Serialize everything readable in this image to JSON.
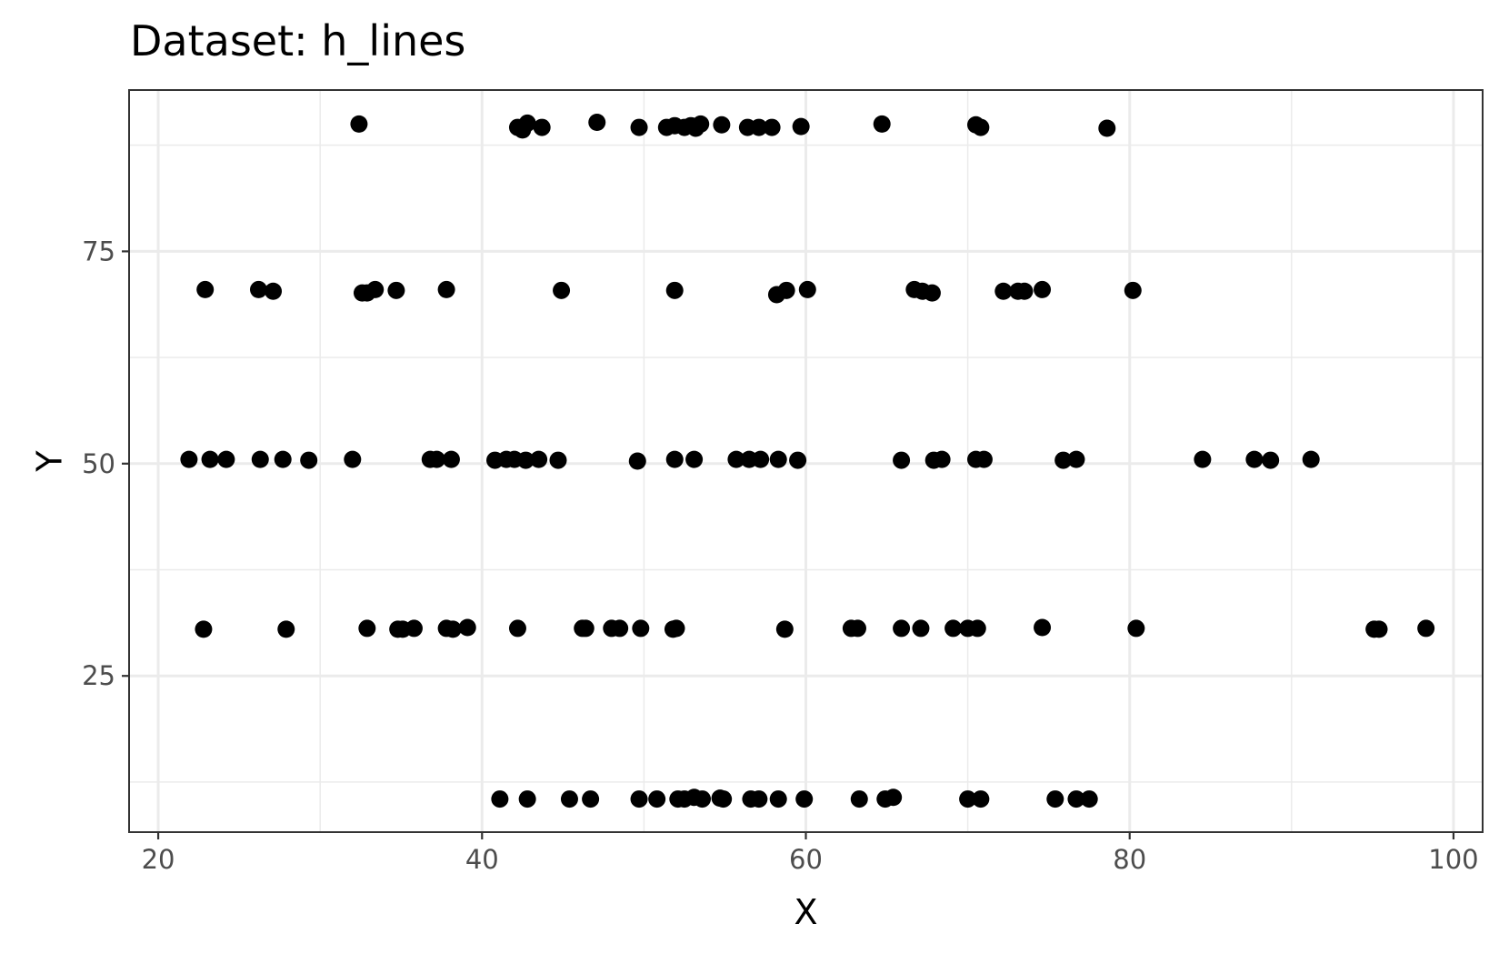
{
  "chart_data": {
    "type": "scatter",
    "title": "Dataset: h_lines",
    "xlabel": "X",
    "ylabel": "Y",
    "xlim": [
      18.2,
      101.8
    ],
    "ylim": [
      6.6,
      94.0
    ],
    "x_ticks": [
      20,
      40,
      60,
      80,
      100
    ],
    "y_ticks": [
      25,
      50,
      75
    ],
    "x_tick_labels": [
      "20",
      "40",
      "60",
      "80",
      "100"
    ],
    "y_tick_labels": [
      "25",
      "50",
      "75"
    ],
    "grid": true,
    "legend": "none",
    "point_color": "#000000",
    "points": [
      {
        "x": 32.4,
        "y": 90.0
      },
      {
        "x": 42.2,
        "y": 89.6
      },
      {
        "x": 42.5,
        "y": 89.3
      },
      {
        "x": 42.8,
        "y": 90.1
      },
      {
        "x": 43.7,
        "y": 89.6
      },
      {
        "x": 47.1,
        "y": 90.2
      },
      {
        "x": 49.7,
        "y": 89.6
      },
      {
        "x": 51.4,
        "y": 89.6
      },
      {
        "x": 51.9,
        "y": 89.8
      },
      {
        "x": 52.5,
        "y": 89.6
      },
      {
        "x": 52.9,
        "y": 89.8
      },
      {
        "x": 53.2,
        "y": 89.5
      },
      {
        "x": 53.5,
        "y": 90.0
      },
      {
        "x": 54.8,
        "y": 89.9
      },
      {
        "x": 56.4,
        "y": 89.6
      },
      {
        "x": 57.1,
        "y": 89.6
      },
      {
        "x": 57.9,
        "y": 89.6
      },
      {
        "x": 59.7,
        "y": 89.7
      },
      {
        "x": 64.7,
        "y": 90.0
      },
      {
        "x": 70.5,
        "y": 89.9
      },
      {
        "x": 70.8,
        "y": 89.6
      },
      {
        "x": 78.6,
        "y": 89.5
      },
      {
        "x": 22.9,
        "y": 70.5
      },
      {
        "x": 26.2,
        "y": 70.5
      },
      {
        "x": 27.1,
        "y": 70.3
      },
      {
        "x": 32.6,
        "y": 70.1
      },
      {
        "x": 32.9,
        "y": 70.1
      },
      {
        "x": 33.4,
        "y": 70.5
      },
      {
        "x": 34.7,
        "y": 70.4
      },
      {
        "x": 37.8,
        "y": 70.5
      },
      {
        "x": 44.9,
        "y": 70.4
      },
      {
        "x": 51.9,
        "y": 70.4
      },
      {
        "x": 58.2,
        "y": 69.9
      },
      {
        "x": 58.8,
        "y": 70.4
      },
      {
        "x": 60.1,
        "y": 70.5
      },
      {
        "x": 66.7,
        "y": 70.5
      },
      {
        "x": 67.2,
        "y": 70.3
      },
      {
        "x": 67.8,
        "y": 70.1
      },
      {
        "x": 72.2,
        "y": 70.3
      },
      {
        "x": 73.1,
        "y": 70.3
      },
      {
        "x": 73.5,
        "y": 70.3
      },
      {
        "x": 74.6,
        "y": 70.5
      },
      {
        "x": 80.2,
        "y": 70.4
      },
      {
        "x": 21.9,
        "y": 50.5
      },
      {
        "x": 23.2,
        "y": 50.5
      },
      {
        "x": 24.2,
        "y": 50.5
      },
      {
        "x": 26.3,
        "y": 50.5
      },
      {
        "x": 27.7,
        "y": 50.5
      },
      {
        "x": 29.3,
        "y": 50.4
      },
      {
        "x": 32.0,
        "y": 50.5
      },
      {
        "x": 36.8,
        "y": 50.5
      },
      {
        "x": 37.2,
        "y": 50.5
      },
      {
        "x": 38.1,
        "y": 50.5
      },
      {
        "x": 40.8,
        "y": 50.4
      },
      {
        "x": 41.5,
        "y": 50.5
      },
      {
        "x": 42.0,
        "y": 50.5
      },
      {
        "x": 42.7,
        "y": 50.4
      },
      {
        "x": 43.5,
        "y": 50.5
      },
      {
        "x": 44.7,
        "y": 50.4
      },
      {
        "x": 49.6,
        "y": 50.3
      },
      {
        "x": 51.9,
        "y": 50.5
      },
      {
        "x": 53.1,
        "y": 50.5
      },
      {
        "x": 55.7,
        "y": 50.5
      },
      {
        "x": 56.5,
        "y": 50.5
      },
      {
        "x": 57.2,
        "y": 50.5
      },
      {
        "x": 58.3,
        "y": 50.5
      },
      {
        "x": 59.5,
        "y": 50.4
      },
      {
        "x": 65.9,
        "y": 50.4
      },
      {
        "x": 67.9,
        "y": 50.4
      },
      {
        "x": 68.4,
        "y": 50.5
      },
      {
        "x": 70.5,
        "y": 50.5
      },
      {
        "x": 71.0,
        "y": 50.5
      },
      {
        "x": 75.9,
        "y": 50.4
      },
      {
        "x": 76.7,
        "y": 50.5
      },
      {
        "x": 84.5,
        "y": 50.5
      },
      {
        "x": 87.7,
        "y": 50.5
      },
      {
        "x": 88.7,
        "y": 50.4
      },
      {
        "x": 91.2,
        "y": 50.5
      },
      {
        "x": 22.8,
        "y": 30.5
      },
      {
        "x": 27.9,
        "y": 30.5
      },
      {
        "x": 32.9,
        "y": 30.6
      },
      {
        "x": 34.8,
        "y": 30.5
      },
      {
        "x": 35.1,
        "y": 30.5
      },
      {
        "x": 35.8,
        "y": 30.6
      },
      {
        "x": 37.8,
        "y": 30.6
      },
      {
        "x": 38.2,
        "y": 30.5
      },
      {
        "x": 39.1,
        "y": 30.7
      },
      {
        "x": 42.2,
        "y": 30.6
      },
      {
        "x": 46.2,
        "y": 30.6
      },
      {
        "x": 46.4,
        "y": 30.6
      },
      {
        "x": 48.0,
        "y": 30.6
      },
      {
        "x": 48.5,
        "y": 30.6
      },
      {
        "x": 49.8,
        "y": 30.6
      },
      {
        "x": 51.8,
        "y": 30.5
      },
      {
        "x": 52.0,
        "y": 30.6
      },
      {
        "x": 58.7,
        "y": 30.5
      },
      {
        "x": 62.8,
        "y": 30.6
      },
      {
        "x": 63.2,
        "y": 30.6
      },
      {
        "x": 65.9,
        "y": 30.6
      },
      {
        "x": 67.1,
        "y": 30.6
      },
      {
        "x": 69.1,
        "y": 30.6
      },
      {
        "x": 70.0,
        "y": 30.6
      },
      {
        "x": 70.6,
        "y": 30.6
      },
      {
        "x": 74.6,
        "y": 30.7
      },
      {
        "x": 80.4,
        "y": 30.6
      },
      {
        "x": 95.1,
        "y": 30.5
      },
      {
        "x": 95.4,
        "y": 30.5
      },
      {
        "x": 98.3,
        "y": 30.6
      },
      {
        "x": 41.1,
        "y": 10.5
      },
      {
        "x": 42.8,
        "y": 10.5
      },
      {
        "x": 45.4,
        "y": 10.5
      },
      {
        "x": 46.7,
        "y": 10.5
      },
      {
        "x": 49.7,
        "y": 10.5
      },
      {
        "x": 50.8,
        "y": 10.5
      },
      {
        "x": 52.1,
        "y": 10.5
      },
      {
        "x": 52.5,
        "y": 10.5
      },
      {
        "x": 53.1,
        "y": 10.7
      },
      {
        "x": 53.6,
        "y": 10.5
      },
      {
        "x": 54.7,
        "y": 10.6
      },
      {
        "x": 54.9,
        "y": 10.5
      },
      {
        "x": 56.6,
        "y": 10.5
      },
      {
        "x": 57.1,
        "y": 10.5
      },
      {
        "x": 58.3,
        "y": 10.5
      },
      {
        "x": 59.9,
        "y": 10.5
      },
      {
        "x": 63.3,
        "y": 10.5
      },
      {
        "x": 64.9,
        "y": 10.5
      },
      {
        "x": 65.4,
        "y": 10.7
      },
      {
        "x": 70.0,
        "y": 10.5
      },
      {
        "x": 70.8,
        "y": 10.5
      },
      {
        "x": 75.4,
        "y": 10.5
      },
      {
        "x": 76.7,
        "y": 10.5
      },
      {
        "x": 77.5,
        "y": 10.5
      }
    ]
  }
}
